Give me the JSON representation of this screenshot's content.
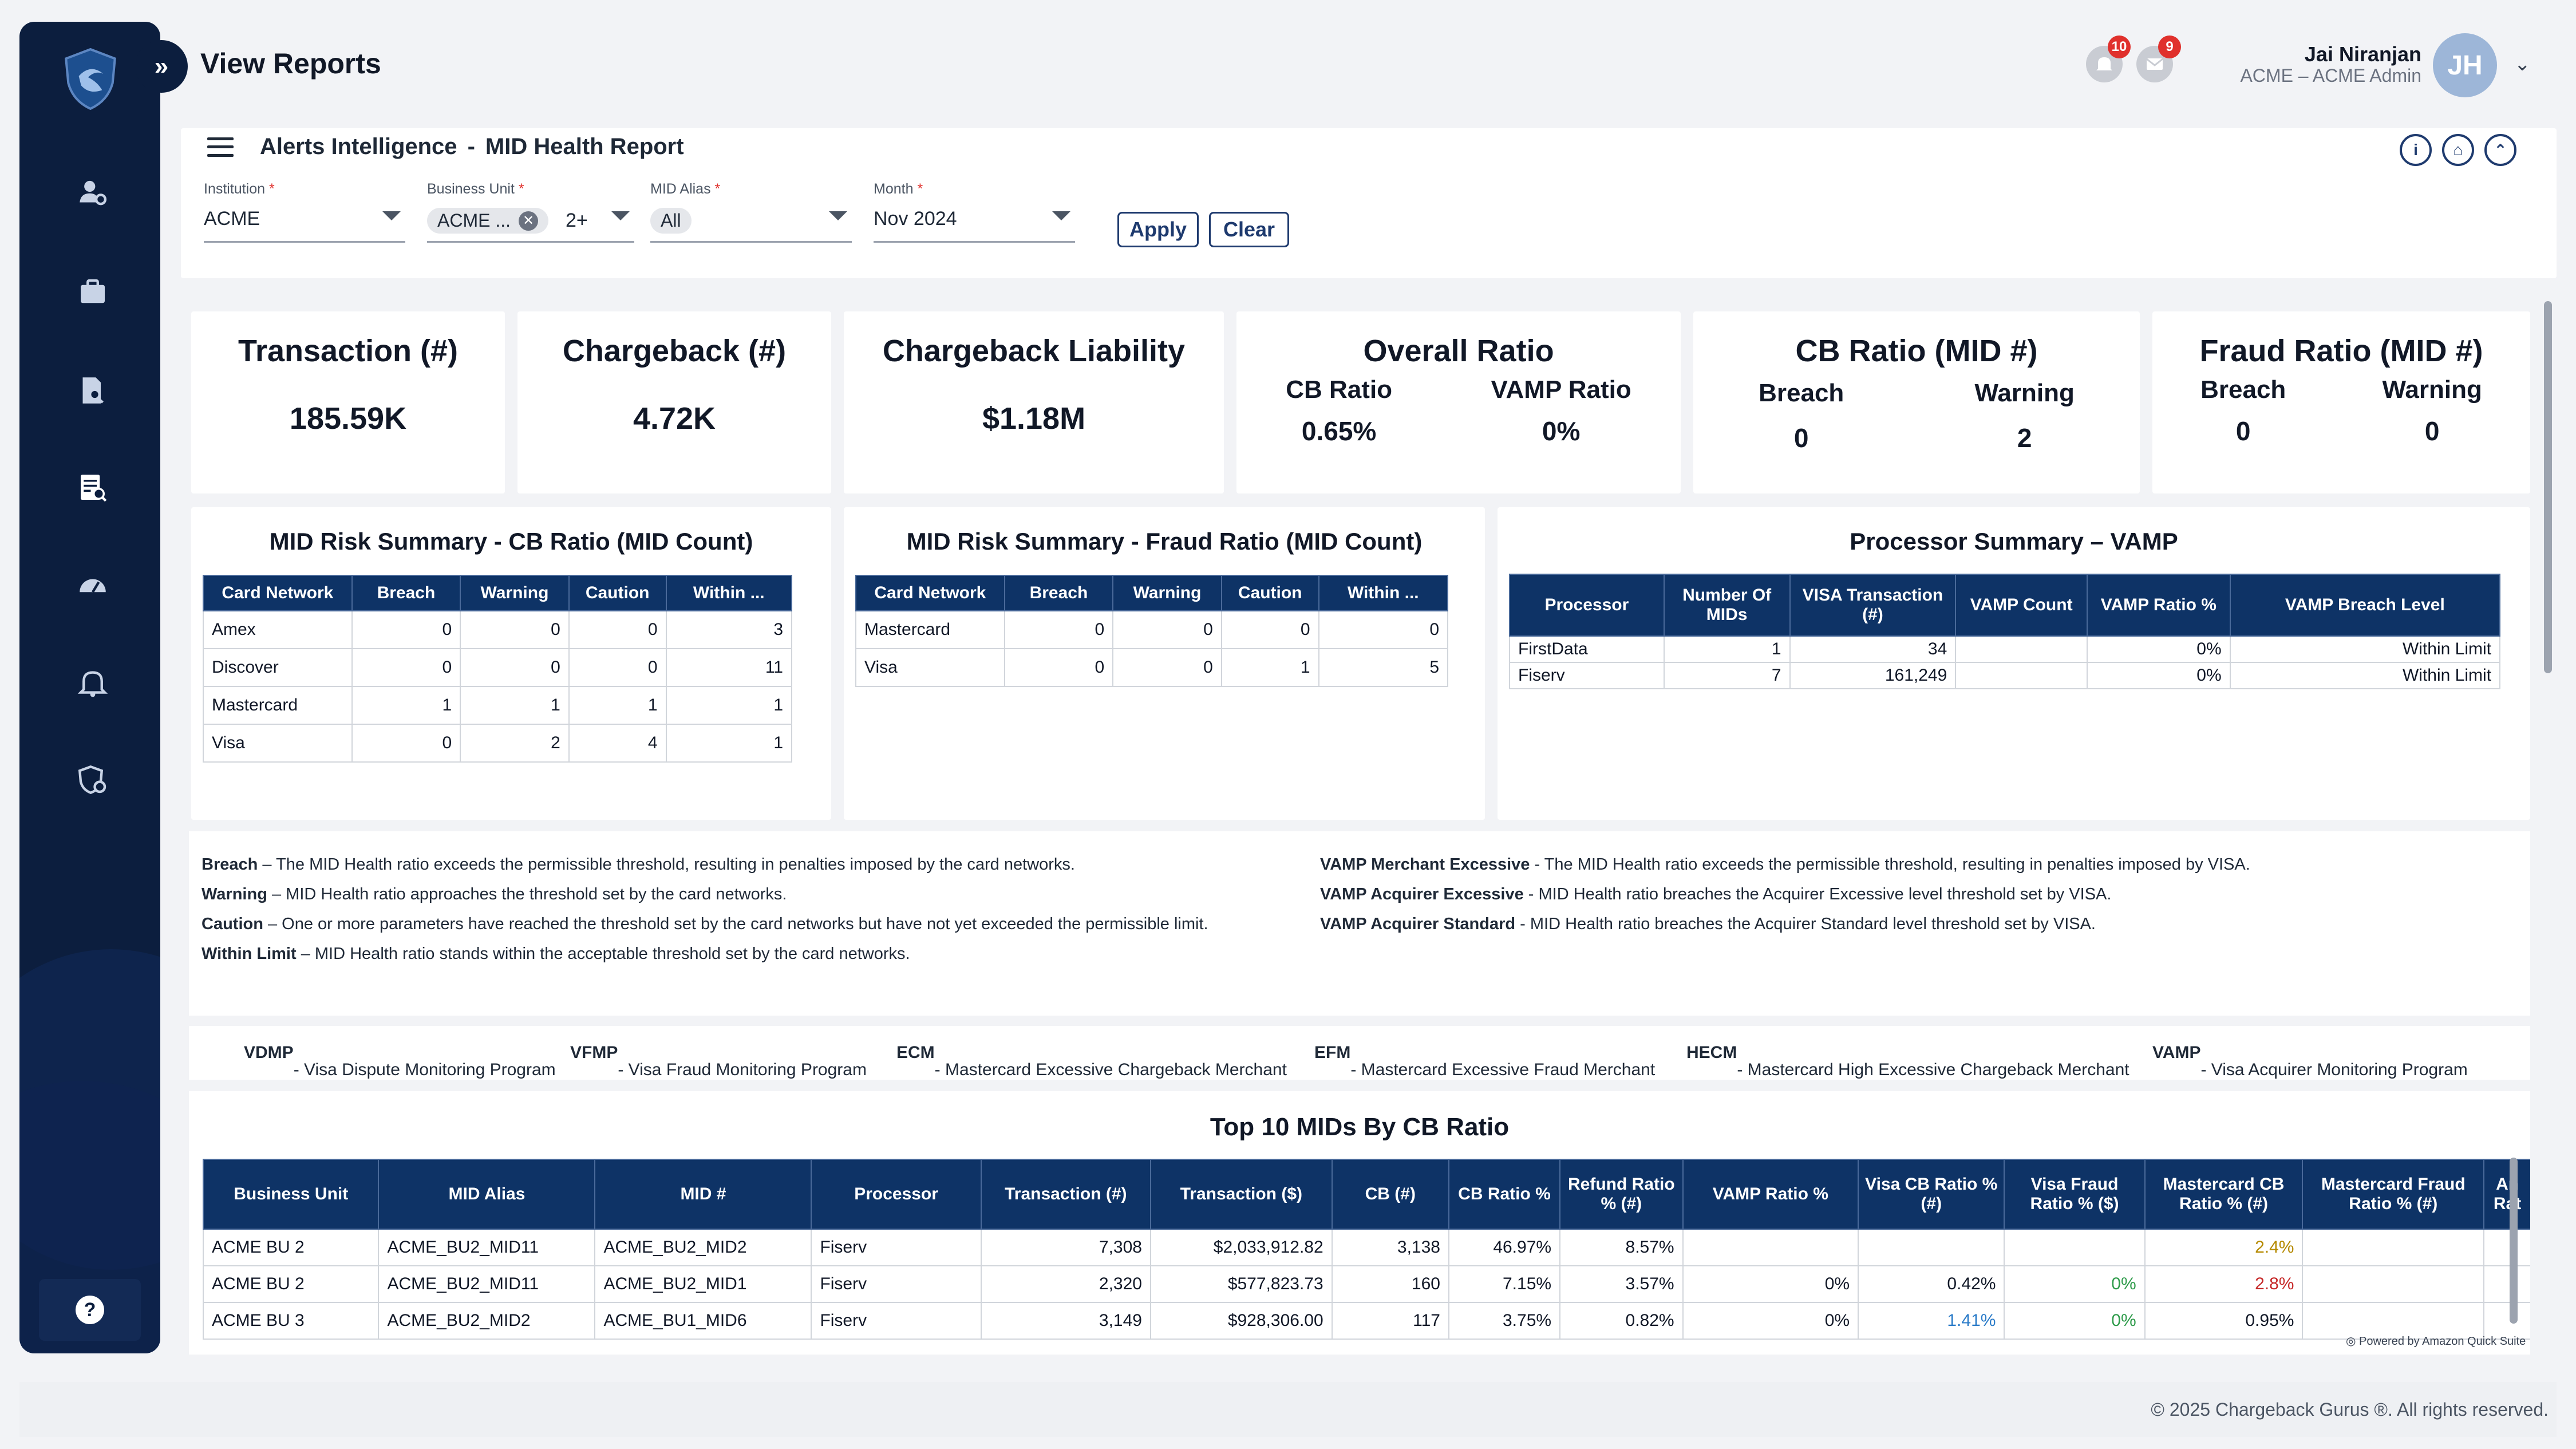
{
  "header": {
    "title": "View Reports",
    "notifications_count": "10",
    "messages_count": "9",
    "user_name": "Jai Niranjan",
    "user_role": "ACME – ACME Admin",
    "avatar_initials": "JH"
  },
  "breadcrumb": {
    "section": "Alerts Intelligence",
    "separator": "-",
    "page": "MID Health Report"
  },
  "filters": {
    "institution": {
      "label": "Institution",
      "value": "ACME"
    },
    "business_unit": {
      "label": "Business Unit",
      "chip": "ACME ...",
      "more": "2+"
    },
    "mid_alias": {
      "label": "MID Alias",
      "chip": "All"
    },
    "month": {
      "label": "Month",
      "value": "Nov 2024"
    },
    "apply_label": "Apply",
    "clear_label": "Clear",
    "required_mark": "*"
  },
  "kpis": {
    "transaction": {
      "title": "Transaction (#)",
      "value": "185.59K"
    },
    "chargeback": {
      "title": "Chargeback (#)",
      "value": "4.72K"
    },
    "liability": {
      "title": "Chargeback Liability",
      "value": "$1.18M"
    },
    "overall": {
      "title": "Overall Ratio",
      "cb_label": "CB Ratio",
      "cb_value": "0.65%",
      "vamp_label": "VAMP Ratio",
      "vamp_value": "0%"
    },
    "cb_mid": {
      "title": "CB Ratio (MID #)",
      "breach_label": "Breach",
      "breach_value": "0",
      "warning_label": "Warning",
      "warning_value": "2"
    },
    "fraud_mid": {
      "title": "Fraud Ratio (MID #)",
      "breach_label": "Breach",
      "breach_value": "0",
      "warning_label": "Warning",
      "warning_value": "0"
    }
  },
  "cb_summary": {
    "title": "MID Risk Summary - CB Ratio (MID Count)",
    "headers": [
      "Card Network",
      "Breach",
      "Warning",
      "Caution",
      "Within ..."
    ],
    "rows": [
      [
        "Amex",
        "0",
        "0",
        "0",
        "3"
      ],
      [
        "Discover",
        "0",
        "0",
        "0",
        "11"
      ],
      [
        "Mastercard",
        "1",
        "1",
        "1",
        "1"
      ],
      [
        "Visa",
        "0",
        "2",
        "4",
        "1"
      ]
    ]
  },
  "fraud_summary": {
    "title": "MID Risk Summary - Fraud Ratio (MID Count)",
    "headers": [
      "Card Network",
      "Breach",
      "Warning",
      "Caution",
      "Within ..."
    ],
    "rows": [
      [
        "Mastercard",
        "0",
        "0",
        "0",
        "0"
      ],
      [
        "Visa",
        "0",
        "0",
        "1",
        "5"
      ]
    ]
  },
  "vamp_summary": {
    "title": "Processor Summary – VAMP",
    "headers": [
      "Processor",
      "Number Of MIDs",
      "VISA Transaction (#)",
      "VAMP Count",
      "VAMP Ratio %",
      "VAMP Breach Level"
    ],
    "rows": [
      [
        "FirstData",
        "1",
        "34",
        "",
        "0%",
        "Within Limit"
      ],
      [
        "Fiserv",
        "7",
        "161,249",
        "",
        "0%",
        "Within Limit"
      ]
    ]
  },
  "definitions": {
    "left": [
      {
        "term": "Breach",
        "text": " – The MID Health ratio exceeds the permissible threshold, resulting in penalties imposed by the card networks."
      },
      {
        "term": "Warning",
        "text": " – MID Health ratio approaches the threshold set by the card networks."
      },
      {
        "term": "Caution",
        "text": " – One or more parameters have reached the threshold set by the card networks but have not yet exceeded the permissible limit."
      },
      {
        "term": "Within Limit",
        "text": " – MID Health ratio stands within the acceptable threshold set by the card networks."
      }
    ],
    "right": [
      {
        "term": "VAMP Merchant Excessive",
        "text": " - The MID Health ratio exceeds the permissible threshold, resulting in penalties imposed by VISA."
      },
      {
        "term": "VAMP Acquirer Excessive",
        "text": " - MID Health ratio breaches the Acquirer Excessive level threshold set by VISA."
      },
      {
        "term": "VAMP Acquirer Standard",
        "text": " - MID Health ratio breaches the Acquirer Standard level threshold set by VISA."
      }
    ]
  },
  "programs": [
    {
      "abbr": "VDMP",
      "text": " - Visa Dispute Monitoring Program"
    },
    {
      "abbr": "VFMP",
      "text": " - Visa Fraud Monitoring Program"
    },
    {
      "abbr": "ECM",
      "text": " - Mastercard Excessive Chargeback Merchant"
    },
    {
      "abbr": "EFM",
      "text": " - Mastercard Excessive Fraud Merchant"
    },
    {
      "abbr": "HECM",
      "text": " - Mastercard High Excessive Chargeback Merchant"
    },
    {
      "abbr": "VAMP",
      "text": " - Visa Acquirer Monitoring Program"
    }
  ],
  "top10": {
    "title": "Top 10 MIDs By CB Ratio",
    "headers": [
      "Business Unit",
      "MID Alias",
      "MID #",
      "Processor",
      "Transaction (#)",
      "Transaction ($)",
      "CB (#)",
      "CB Ratio %",
      "Refund Ratio % (#)",
      "VAMP Ratio %",
      "Visa CB Ratio % (#)",
      "Visa Fraud Ratio % ($)",
      "Mastercard CB Ratio % (#)",
      "Mastercard Fraud Ratio % (#)",
      "An Rat"
    ],
    "rows": [
      [
        "ACME BU 2",
        "ACME_BU2_MID11",
        "ACME_BU2_MID2",
        "Fiserv",
        "7,308",
        "$2,033,912.82",
        "3,138",
        "46.97%",
        "8.57%",
        "",
        "",
        "",
        "2.4%",
        "",
        ""
      ],
      [
        "ACME BU 2",
        "ACME_BU2_MID11",
        "ACME_BU2_MID1",
        "Fiserv",
        "2,320",
        "$577,823.73",
        "160",
        "7.15%",
        "3.57%",
        "0%",
        "0.42%",
        "0%",
        "2.8%",
        "",
        ""
      ],
      [
        "ACME BU 3",
        "ACME_BU2_MID2",
        "ACME_BU1_MID6",
        "Fiserv",
        "3,149",
        "$928,306.00",
        "117",
        "3.75%",
        "0.82%",
        "0%",
        "1.41%",
        "0%",
        "0.95%",
        "",
        ""
      ]
    ],
    "cell_colors": {
      "warning": "#b58a00",
      "breach": "#c62828",
      "ok": "#2e9b4a",
      "caution": "#2a7bc8"
    }
  },
  "footer": {
    "powered_by": "Powered by Amazon Quick Suite",
    "copyright": "© 2025 Chargeback Gurus ®. All rights reserved."
  },
  "colors": {
    "sidebar": "#0c1e3e",
    "table_header": "#0e3366",
    "link": "#1f4e9c",
    "badge": "#e0302c"
  }
}
